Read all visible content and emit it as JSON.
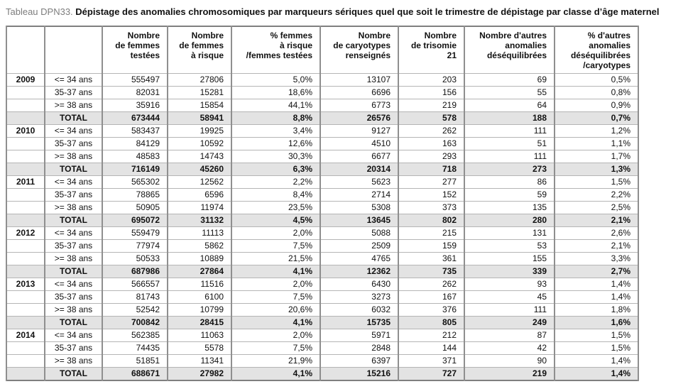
{
  "title": {
    "label": "Tableau DPN33.",
    "text": "Dépistage des anomalies chromosomiques par marqueurs sériques quel que soit le trimestre de dépistage par classe d’âge maternel"
  },
  "table": {
    "headers": [
      "",
      "",
      "Nombre\nde femmes\ntestées",
      "Nombre\nde femmes\nà risque",
      "% femmes\nà risque\n/femmes testées",
      "Nombre\nde caryotypes\nrenseignés",
      "Nombre\nde trisomie\n21",
      "Nombre d'autres\nanomalies\ndéséquilibrées",
      "% d'autres\nanomalies\ndéséquilibrées\n/caryotypes"
    ],
    "total_label": "TOTAL",
    "groups": [
      {
        "year": "2009",
        "rows": [
          {
            "age": "<= 34 ans",
            "values": [
              "555497",
              "27806",
              "5,0%",
              "13107",
              "203",
              "69",
              "0,5%"
            ]
          },
          {
            "age": "35-37 ans",
            "values": [
              "82031",
              "15281",
              "18,6%",
              "6696",
              "156",
              "55",
              "0,8%"
            ]
          },
          {
            "age": ">= 38 ans",
            "values": [
              "35916",
              "15854",
              "44,1%",
              "6773",
              "219",
              "64",
              "0,9%"
            ]
          }
        ],
        "total": [
          "673444",
          "58941",
          "8,8%",
          "26576",
          "578",
          "188",
          "0,7%"
        ]
      },
      {
        "year": "2010",
        "rows": [
          {
            "age": "<= 34 ans",
            "values": [
              "583437",
              "19925",
              "3,4%",
              "9127",
              "262",
              "111",
              "1,2%"
            ]
          },
          {
            "age": "35-37 ans",
            "values": [
              "84129",
              "10592",
              "12,6%",
              "4510",
              "163",
              "51",
              "1,1%"
            ]
          },
          {
            "age": ">= 38 ans",
            "values": [
              "48583",
              "14743",
              "30,3%",
              "6677",
              "293",
              "111",
              "1,7%"
            ]
          }
        ],
        "total": [
          "716149",
          "45260",
          "6,3%",
          "20314",
          "718",
          "273",
          "1,3%"
        ]
      },
      {
        "year": "2011",
        "rows": [
          {
            "age": "<= 34 ans",
            "values": [
              "565302",
              "12562",
              "2,2%",
              "5623",
              "277",
              "86",
              "1,5%"
            ]
          },
          {
            "age": "35-37 ans",
            "values": [
              "78865",
              "6596",
              "8,4%",
              "2714",
              "152",
              "59",
              "2,2%"
            ]
          },
          {
            "age": ">= 38 ans",
            "values": [
              "50905",
              "11974",
              "23,5%",
              "5308",
              "373",
              "135",
              "2,5%"
            ]
          }
        ],
        "total": [
          "695072",
          "31132",
          "4,5%",
          "13645",
          "802",
          "280",
          "2,1%"
        ]
      },
      {
        "year": "2012",
        "rows": [
          {
            "age": "<= 34 ans",
            "values": [
              "559479",
              "11113",
              "2,0%",
              "5088",
              "215",
              "131",
              "2,6%"
            ]
          },
          {
            "age": "35-37 ans",
            "values": [
              "77974",
              "5862",
              "7,5%",
              "2509",
              "159",
              "53",
              "2,1%"
            ]
          },
          {
            "age": ">= 38 ans",
            "values": [
              "50533",
              "10889",
              "21,5%",
              "4765",
              "361",
              "155",
              "3,3%"
            ]
          }
        ],
        "total": [
          "687986",
          "27864",
          "4,1%",
          "12362",
          "735",
          "339",
          "2,7%"
        ]
      },
      {
        "year": "2013",
        "rows": [
          {
            "age": "<= 34 ans",
            "values": [
              "566557",
              "11516",
              "2,0%",
              "6430",
              "262",
              "93",
              "1,4%"
            ]
          },
          {
            "age": "35-37 ans",
            "values": [
              "81743",
              "6100",
              "7,5%",
              "3273",
              "167",
              "45",
              "1,4%"
            ]
          },
          {
            "age": ">= 38 ans",
            "values": [
              "52542",
              "10799",
              "20,6%",
              "6032",
              "376",
              "111",
              "1,8%"
            ]
          }
        ],
        "total": [
          "700842",
          "28415",
          "4,1%",
          "15735",
          "805",
          "249",
          "1,6%"
        ]
      },
      {
        "year": "2014",
        "rows": [
          {
            "age": "<= 34 ans",
            "values": [
              "562385",
              "11063",
              "2,0%",
              "5971",
              "212",
              "87",
              "1,5%"
            ]
          },
          {
            "age": "35-37 ans",
            "values": [
              "74435",
              "5578",
              "7,5%",
              "2848",
              "144",
              "42",
              "1,5%"
            ]
          },
          {
            "age": ">= 38 ans",
            "values": [
              "51851",
              "11341",
              "21,9%",
              "6397",
              "371",
              "90",
              "1,4%"
            ]
          }
        ],
        "total": [
          "688671",
          "27982",
          "4,1%",
          "15216",
          "727",
          "219",
          "1,4%"
        ]
      }
    ]
  }
}
